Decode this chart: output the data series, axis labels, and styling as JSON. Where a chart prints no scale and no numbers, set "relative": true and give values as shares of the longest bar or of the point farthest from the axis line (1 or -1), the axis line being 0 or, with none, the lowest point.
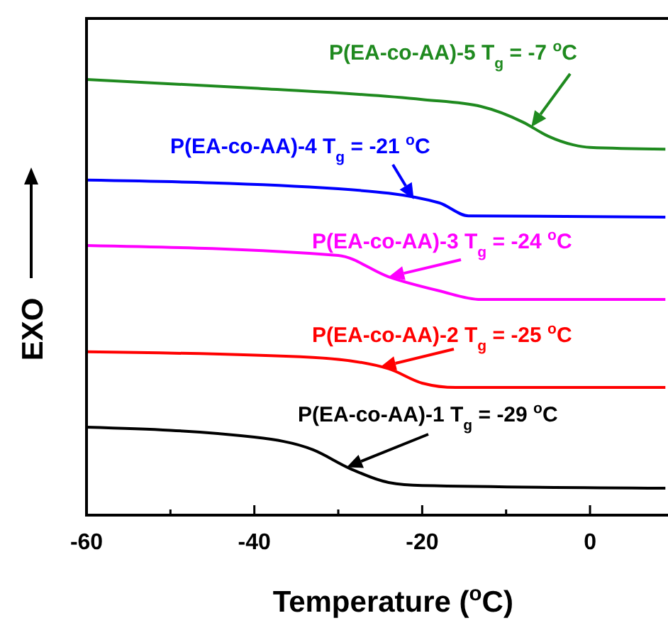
{
  "chart_data": {
    "type": "line",
    "relative": true,
    "xlabel": "Temperature ($^{o}$C)",
    "ylabel": "EXO",
    "xlim": [
      -60,
      9
    ],
    "xticks": [
      -60,
      {
        "value": -50,
        "label": null
      },
      -40,
      {
        "value": -30,
        "label": null
      },
      -20,
      {
        "value": -10,
        "label": null
      },
      0
    ],
    "tick_labels": "x",
    "grid": false,
    "marker": "none",
    "line_style": "solid",
    "series": [
      {
        "color": "#1f8a1f",
        "x": [
          -60,
          -40,
          -20,
          -13,
          -8,
          -5,
          -2,
          0,
          9
        ],
        "values": [
          1.0,
          0.98,
          0.954,
          0.938,
          0.902,
          0.87,
          0.85,
          0.844,
          0.84
        ]
      },
      {
        "color": "#0000ff",
        "x": [
          -60,
          -30,
          -18,
          -14.5,
          9
        ],
        "values": [
          0.769,
          0.749,
          0.717,
          0.687,
          0.684
        ]
      },
      {
        "color": "#ff00ff",
        "x": [
          -60,
          -30,
          -24,
          -18,
          -13,
          9
        ],
        "values": [
          0.619,
          0.596,
          0.547,
          0.515,
          0.495,
          0.495
        ]
      },
      {
        "color": "#ff0000",
        "x": [
          -60,
          -33,
          -24,
          -20,
          -16,
          9
        ],
        "values": [
          0.375,
          0.362,
          0.336,
          0.303,
          0.293,
          0.293
        ]
      },
      {
        "color": "#000000",
        "x": [
          -60,
          -40,
          -33,
          -28.6,
          -24,
          -20,
          9
        ],
        "values": [
          0.202,
          0.179,
          0.15,
          0.107,
          0.075,
          0.068,
          0.062
        ]
      }
    ],
    "annotations": [
      {
        "text": "P(EA-co-AA)-5 T$_{g}$ = -7 $^{o}$C",
        "x": -7,
        "y": 0.891
      },
      {
        "text": "P(EA-co-AA)-4 T$_{g}$ = -21 $^{o}$C",
        "x": -21,
        "y": 0.725
      },
      {
        "text": "P(EA-co-AA)-3 T$_{g}$ = -24 $^{o}$C",
        "x": -24,
        "y": 0.547
      },
      {
        "text": "P(EA-co-AA)-2 T$_{g}$ = -25 $^{o}$C",
        "x": -25,
        "y": 0.34
      },
      {
        "text": "P(EA-co-AA)-1 T$_{g}$ = -29 $^{o}$C",
        "x": -29,
        "y": 0.11
      }
    ]
  }
}
